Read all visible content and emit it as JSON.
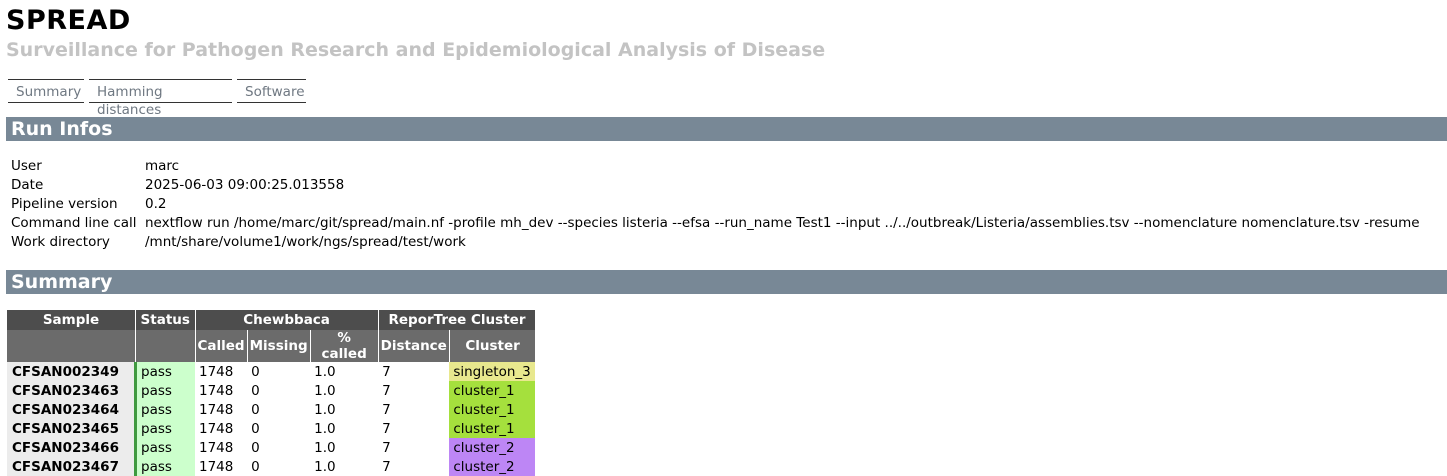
{
  "header": {
    "title": "SPREAD",
    "subtitle": "Surveillance for Pathogen Research and Epidemiological Analysis of Disease"
  },
  "nav": [
    "Summary",
    "Hamming distances",
    "Software"
  ],
  "run_infos": {
    "heading": "Run Infos",
    "rows": [
      {
        "key": "User",
        "value": "marc"
      },
      {
        "key": "Date",
        "value": "2025-06-03 09:00:25.013558"
      },
      {
        "key": "Pipeline version",
        "value": "0.2"
      },
      {
        "key": "Command line call",
        "value": "nextflow run /home/marc/git/spread/main.nf -profile mh_dev --species listeria --efsa --run_name Test1 --input ../../outbreak/Listeria/assemblies.tsv --nomenclature nomenclature.tsv -resume"
      },
      {
        "key": "Work directory",
        "value": "/mnt/share/volume1/work/ngs/spread/test/work"
      }
    ]
  },
  "summary": {
    "heading": "Summary",
    "groups": {
      "sample": "Sample",
      "status": "Status",
      "chewbbaca": "Chewbbaca",
      "reportree": "ReporTree Cluster"
    },
    "columns": {
      "called": "Called",
      "missing": "Missing",
      "pct_called": "% called",
      "distance": "Distance",
      "cluster": "Cluster"
    },
    "rows": [
      {
        "sample": "CFSAN002349",
        "status": "pass",
        "called": "1748",
        "missing": "0",
        "pct": "1.0",
        "distance": "7",
        "cluster": "singleton_3"
      },
      {
        "sample": "CFSAN023463",
        "status": "pass",
        "called": "1748",
        "missing": "0",
        "pct": "1.0",
        "distance": "7",
        "cluster": "cluster_1"
      },
      {
        "sample": "CFSAN023464",
        "status": "pass",
        "called": "1748",
        "missing": "0",
        "pct": "1.0",
        "distance": "7",
        "cluster": "cluster_1"
      },
      {
        "sample": "CFSAN023465",
        "status": "pass",
        "called": "1748",
        "missing": "0",
        "pct": "1.0",
        "distance": "7",
        "cluster": "cluster_1"
      },
      {
        "sample": "CFSAN023466",
        "status": "pass",
        "called": "1748",
        "missing": "0",
        "pct": "1.0",
        "distance": "7",
        "cluster": "cluster_2"
      },
      {
        "sample": "CFSAN023467",
        "status": "pass",
        "called": "1748",
        "missing": "0",
        "pct": "1.0",
        "distance": "7",
        "cluster": "cluster_2"
      }
    ]
  },
  "colors": {
    "section_header": "#788896",
    "status_pass": "#ccffcc",
    "singleton": "#e8e88e",
    "cluster_1": "#a5e03d",
    "cluster_2": "#bd86f5"
  }
}
